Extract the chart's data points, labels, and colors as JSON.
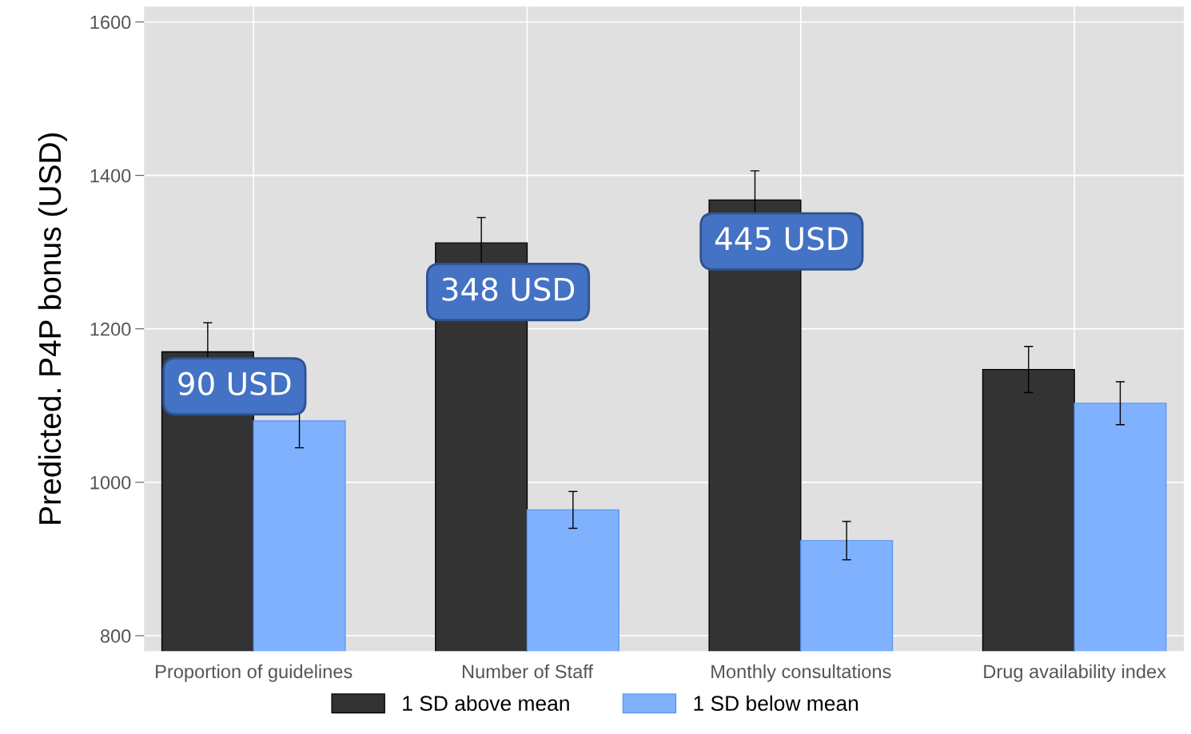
{
  "chart_data": {
    "type": "bar",
    "ylabel": "Predicted. P4P bonus (USD)",
    "categories": [
      "Proportion of guidelines",
      "Number of Staff",
      "Monthly consultations",
      "Drug availability index"
    ],
    "series": [
      {
        "name": "1 SD above mean",
        "color": "#333333",
        "values": [
          1170,
          1312,
          1368,
          1147
        ],
        "errors": [
          38,
          33,
          38,
          30
        ]
      },
      {
        "name": "1 SD below mean",
        "color": "#80b1ff",
        "values": [
          1080,
          964,
          924,
          1103
        ],
        "errors": [
          35,
          24,
          25,
          28
        ]
      }
    ],
    "ylim": [
      780,
      1620
    ],
    "yticks": [
      800,
      1000,
      1200,
      1400,
      1600
    ],
    "grid": true,
    "legend": "bottom",
    "annotations": [
      {
        "text": "90 USD",
        "x": "Proportion of guidelines",
        "y": 1125
      },
      {
        "text": "348 USD",
        "x": "Number of Staff",
        "y": 1248
      },
      {
        "text": "445 USD",
        "x": "Monthly consultations",
        "y": 1314
      }
    ]
  }
}
